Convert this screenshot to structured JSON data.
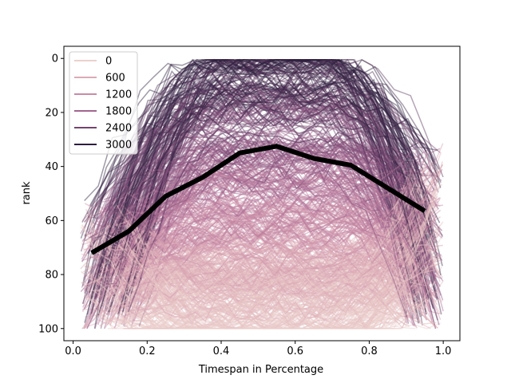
{
  "chart_data": {
    "type": "line",
    "title": "",
    "xlabel": "Timespan in Percentage",
    "ylabel": "rank",
    "xlim": [
      -0.025,
      1.045
    ],
    "ylim": [
      104.5,
      -4.5
    ],
    "y_inverted": true,
    "x_ticks": [
      0.0,
      0.2,
      0.4,
      0.6,
      0.8,
      1.0
    ],
    "x_tick_labels": [
      "0.0",
      "0.2",
      "0.4",
      "0.6",
      "0.8",
      "1.0"
    ],
    "y_ticks": [
      0,
      20,
      40,
      60,
      80,
      100
    ],
    "y_tick_labels": [
      "0",
      "20",
      "40",
      "60",
      "80",
      "100"
    ],
    "grid": false,
    "legend": {
      "placement": "top-left",
      "entries": [
        {
          "label": "0",
          "color": "#ecd0cc"
        },
        {
          "label": "600",
          "color": "#dcaab6"
        },
        {
          "label": "1200",
          "color": "#c98aa6"
        },
        {
          "label": "1800",
          "color": "#a3658f"
        },
        {
          "label": "2400",
          "color": "#72436f"
        },
        {
          "label": "3000",
          "color": "#2d1e3e"
        }
      ]
    },
    "background_lines": {
      "count_estimate": 600,
      "hue_scale": "light-pink to dark-purple (by value 0-3000)",
      "alpha": 0.45
    },
    "series": [
      {
        "style": "mean",
        "color": "#000000",
        "x": [
          0.05,
          0.15,
          0.25,
          0.35,
          0.45,
          0.55,
          0.65,
          0.75,
          0.85,
          0.95
        ],
        "y": [
          72,
          64,
          51,
          44,
          35,
          32.5,
          37,
          39.5,
          48,
          56.5
        ]
      }
    ]
  }
}
